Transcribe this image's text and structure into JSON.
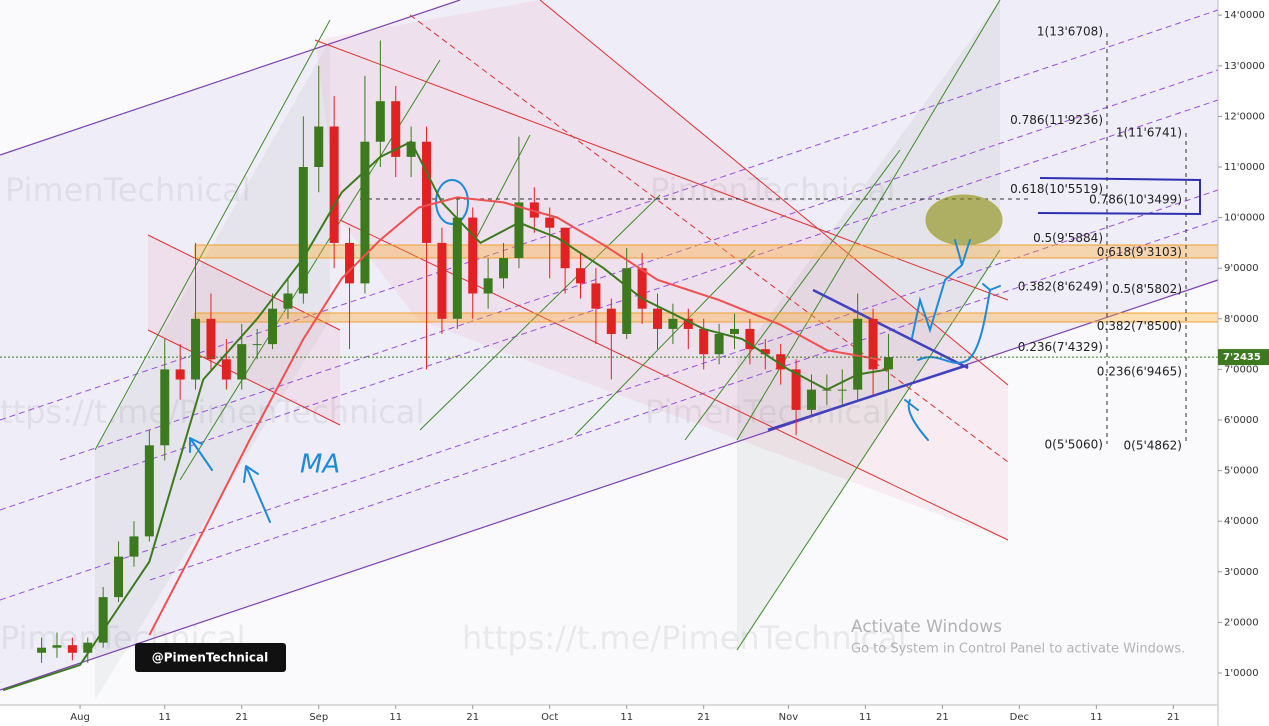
{
  "chart_data": {
    "type": "candlestick",
    "x": [
      -5,
      -3,
      -1,
      1,
      3,
      5,
      7,
      9,
      11,
      13,
      15,
      17,
      19,
      21,
      23,
      25,
      27,
      29,
      31,
      33,
      35,
      37,
      39,
      41,
      43,
      45,
      47,
      49,
      51,
      53,
      55,
      57,
      59,
      61,
      63,
      65,
      67,
      69,
      71,
      73,
      75,
      77,
      79,
      81,
      83,
      85,
      87,
      89,
      91,
      93,
      95,
      97,
      99,
      101,
      103,
      105
    ],
    "open": [
      14000,
      15000,
      15500,
      14000,
      16000,
      25000,
      33000,
      37000,
      55000,
      70000,
      68000,
      80000,
      72000,
      68000,
      75000,
      75000,
      82000,
      85000,
      110000,
      118000,
      95000,
      87000,
      115000,
      123000,
      112000,
      115000,
      95000,
      80000,
      100000,
      85000,
      88000,
      92000,
      103000,
      100000,
      98000,
      90000,
      87000,
      82000,
      77000,
      90000,
      82000,
      78000,
      80000,
      78000,
      73000,
      77000,
      78000,
      74000,
      73000,
      70000,
      62000,
      66000,
      66000,
      66000,
      80000,
      70000
    ],
    "high": [
      17000,
      18000,
      17000,
      17000,
      27000,
      36000,
      40000,
      58000,
      76000,
      75000,
      95000,
      85000,
      76000,
      79000,
      78000,
      85000,
      88000,
      120000,
      130000,
      124000,
      98000,
      128000,
      135000,
      126000,
      118000,
      118000,
      98000,
      104000,
      102000,
      92000,
      95000,
      116000,
      106000,
      102000,
      98000,
      93000,
      90000,
      84000,
      94000,
      93000,
      85000,
      83000,
      82000,
      80000,
      79000,
      81000,
      80000,
      76000,
      75000,
      72000,
      69000,
      69000,
      70000,
      85000,
      82000,
      77000
    ],
    "low": [
      12000,
      13000,
      12500,
      12000,
      15000,
      24000,
      31000,
      36000,
      52000,
      64000,
      66000,
      70000,
      66000,
      66000,
      72000,
      74000,
      80000,
      83000,
      105000,
      90000,
      74000,
      85000,
      110000,
      108000,
      108000,
      70000,
      77000,
      78000,
      80000,
      82000,
      86000,
      90000,
      97000,
      88000,
      85000,
      84000,
      75000,
      68000,
      76000,
      79000,
      74000,
      75000,
      74000,
      70000,
      71000,
      74000,
      71000,
      70000,
      67000,
      57000,
      61000,
      63000,
      63000,
      64000,
      65000,
      66000
    ],
    "close": [
      15000,
      15500,
      14000,
      16000,
      25000,
      33000,
      37000,
      55000,
      70000,
      68000,
      80000,
      72000,
      68000,
      75000,
      75000,
      82000,
      85000,
      110000,
      118000,
      95000,
      87000,
      115000,
      123000,
      112000,
      115000,
      95000,
      80000,
      100000,
      85000,
      88000,
      92000,
      103000,
      100000,
      98000,
      90000,
      87000,
      82000,
      77000,
      90000,
      82000,
      78000,
      80000,
      78000,
      73000,
      77000,
      78000,
      74000,
      73000,
      70000,
      62000,
      66000,
      66000,
      66000,
      80000,
      70000,
      72435
    ],
    "up_color": "#3d7a1f",
    "down_color": "#e02222",
    "moving_averages": [
      {
        "color": "#3d7a1f",
        "x": [
          -10,
          0,
          9,
          16,
          23,
          29,
          34,
          39,
          43,
          47,
          52,
          57,
          62,
          68,
          73,
          81,
          86,
          92,
          97,
          101,
          105
        ],
        "values": [
          6600,
          11600,
          32000,
          68000,
          80000,
          92000,
          105000,
          112000,
          115000,
          103000,
          95000,
          99000,
          96000,
          90000,
          84000,
          78000,
          76000,
          70000,
          66000,
          69000,
          70000
        ]
      },
      {
        "color": "#f05050",
        "x": [
          9,
          16,
          22,
          29,
          34,
          39,
          44,
          49,
          55,
          62,
          68,
          75,
          83,
          91,
          97,
          104
        ],
        "values": [
          17500,
          38000,
          56000,
          76000,
          88000,
          95600,
          102000,
          104000,
          103000,
          100000,
          94600,
          87700,
          83700,
          78800,
          73800,
          71900
        ]
      }
    ],
    "xlim": [
      -10.4,
      147.8
    ],
    "xticks": [
      {
        "value": 0,
        "label": "Aug"
      },
      11,
      21,
      {
        "value": 31,
        "label": "Sep"
      },
      {
        "value": 41,
        "label": "11"
      },
      {
        "value": 51,
        "label": "21"
      },
      {
        "value": 61,
        "label": "Oct"
      },
      {
        "value": 71,
        "label": "11"
      },
      {
        "value": 81,
        "label": "21"
      },
      {
        "value": 92,
        "label": "Nov"
      },
      {
        "value": 102,
        "label": "11"
      },
      {
        "value": 112,
        "label": "21"
      },
      {
        "value": 122,
        "label": "Dec"
      },
      {
        "value": 132,
        "label": "11"
      },
      {
        "value": 142,
        "label": "21"
      }
    ],
    "ylim": [
      3676,
      143004
    ],
    "yticks": [
      {
        "value": 10000,
        "label": "1'0000"
      },
      {
        "value": 20000,
        "label": "2'0000"
      },
      {
        "value": 30000,
        "label": "3'0000"
      },
      {
        "value": 40000,
        "label": "4'0000"
      },
      {
        "value": 50000,
        "label": "5'0000"
      },
      {
        "value": 60000,
        "label": "6'0000"
      },
      {
        "value": 70000,
        "label": "7'0000"
      },
      {
        "value": 80000,
        "label": "8'0000"
      },
      {
        "value": 90000,
        "label": "9'0000"
      },
      {
        "value": 100000,
        "label": "10'0000"
      },
      {
        "value": 110000,
        "label": "11'0000"
      },
      {
        "value": 120000,
        "label": "12'0000"
      },
      {
        "value": 130000,
        "label": "13'0000"
      },
      {
        "value": 140000,
        "label": "14'0000"
      }
    ],
    "last_price": {
      "value": 72435,
      "label": "7'2435",
      "color": "#3d7a1f"
    },
    "fib_levels": [
      [
        {
          "value": 136708,
          "label": "1(13'6708)"
        },
        {
          "value": 119236,
          "label": "0.786(11'9236)"
        },
        {
          "value": 105519,
          "label": "0.618(10'5519)"
        },
        {
          "value": 95884,
          "label": "0.5(9'5884)"
        },
        {
          "value": 86249,
          "label": "0.382(8'6249)"
        },
        {
          "value": 74329,
          "label": "0.236(7'4329)"
        },
        {
          "value": 55060,
          "label": "0(5'5060)"
        }
      ],
      [
        {
          "value": 116741,
          "label": "1(11'6741)"
        },
        {
          "value": 103499,
          "label": "0.786(10'3499)"
        },
        {
          "value": 93103,
          "label": "0.618(9'3103)"
        },
        {
          "value": 85802,
          "label": "0.5(8'5802)"
        },
        {
          "value": 78500,
          "label": "0.382(7'8500)"
        },
        {
          "value": 69465,
          "label": "0.236(6'9465)"
        },
        {
          "value": 54862,
          "label": "0(5'4862)"
        }
      ]
    ],
    "watermarks": [
      "PimenTechnical",
      "PimenTechnical",
      "ttps://t.me/PimenTechnical",
      "PimenTechnical",
      "https://t.me/PimenTechnical",
      "PimenTechnical"
    ],
    "badge": "@PimenTechnical",
    "annotation": "MA",
    "windows_notice": {
      "title": "Activate Windows",
      "text": "Go to System in Control Panel to activate Windows."
    }
  }
}
